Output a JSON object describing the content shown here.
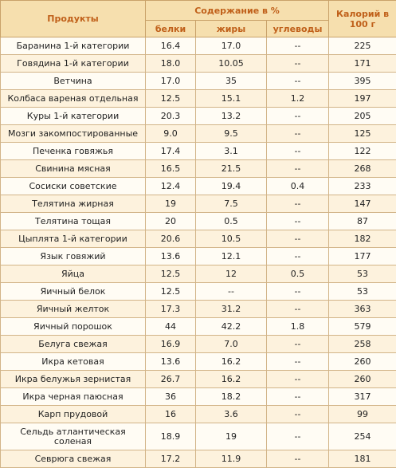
{
  "header": {
    "product": "Продукты",
    "content_group": "Содержание в  %",
    "protein": "белки",
    "fat": "жиры",
    "carbs": "углеводы",
    "calories": "Калорий в 100 г"
  },
  "rows": [
    {
      "name": "Баранина 1-й категории",
      "protein": "16.4",
      "fat": "17.0",
      "carbs": "--",
      "kcal": "225"
    },
    {
      "name": "Говядина 1-й категории",
      "protein": "18.0",
      "fat": "10.05",
      "carbs": "--",
      "kcal": "171"
    },
    {
      "name": "Ветчина",
      "protein": "17.0",
      "fat": "35",
      "carbs": "--",
      "kcal": "395"
    },
    {
      "name": "Колбаса вареная отдельная",
      "protein": "12.5",
      "fat": "15.1",
      "carbs": "1.2",
      "kcal": "197"
    },
    {
      "name": "Куры 1-й категории",
      "protein": "20.3",
      "fat": "13.2",
      "carbs": "--",
      "kcal": "205"
    },
    {
      "name": "Мозги закомпостированные",
      "protein": "9.0",
      "fat": "9.5",
      "carbs": "--",
      "kcal": "125"
    },
    {
      "name": "Печенка говяжья",
      "protein": "17.4",
      "fat": "3.1",
      "carbs": "--",
      "kcal": "122"
    },
    {
      "name": "Свинина мясная",
      "protein": "16.5",
      "fat": "21.5",
      "carbs": "--",
      "kcal": "268"
    },
    {
      "name": "Сосиски советские",
      "protein": "12.4",
      "fat": "19.4",
      "carbs": "0.4",
      "kcal": "233"
    },
    {
      "name": "Телятина жирная",
      "protein": "19",
      "fat": "7.5",
      "carbs": "--",
      "kcal": "147"
    },
    {
      "name": "Телятина тощая",
      "protein": "20",
      "fat": "0.5",
      "carbs": "--",
      "kcal": "87"
    },
    {
      "name": "Цыплята 1-й категории",
      "protein": "20.6",
      "fat": "10.5",
      "carbs": "--",
      "kcal": "182"
    },
    {
      "name": "Язык говяжий",
      "protein": "13.6",
      "fat": "12.1",
      "carbs": "--",
      "kcal": "177"
    },
    {
      "name": "Яйца",
      "protein": "12.5",
      "fat": "12",
      "carbs": "0.5",
      "kcal": "53"
    },
    {
      "name": "Яичный белок",
      "protein": "12.5",
      "fat": "--",
      "carbs": "--",
      "kcal": "53"
    },
    {
      "name": "Яичный желток",
      "protein": "17.3",
      "fat": "31.2",
      "carbs": "--",
      "kcal": "363"
    },
    {
      "name": "Яичный порошок",
      "protein": "44",
      "fat": "42.2",
      "carbs": "1.8",
      "kcal": "579"
    },
    {
      "name": "Белуга свежая",
      "protein": "16.9",
      "fat": "7.0",
      "carbs": "--",
      "kcal": "258"
    },
    {
      "name": "Икра кетовая",
      "protein": "13.6",
      "fat": "16.2",
      "carbs": "--",
      "kcal": "260"
    },
    {
      "name": "Икра белужья зернистая",
      "protein": "26.7",
      "fat": "16.2",
      "carbs": "--",
      "kcal": "260"
    },
    {
      "name": "Икра черная паюсная",
      "protein": "36",
      "fat": "18.2",
      "carbs": "--",
      "kcal": "317"
    },
    {
      "name": "Карп прудовой",
      "protein": "16",
      "fat": "3.6",
      "carbs": "--",
      "kcal": "99"
    },
    {
      "name": "Сельдь атлантическая соленая",
      "protein": "18.9",
      "fat": "19",
      "carbs": "--",
      "kcal": "254"
    },
    {
      "name": "Севрюга свежая",
      "protein": "17.2",
      "fat": "11.9",
      "carbs": "--",
      "kcal": "181"
    }
  ]
}
